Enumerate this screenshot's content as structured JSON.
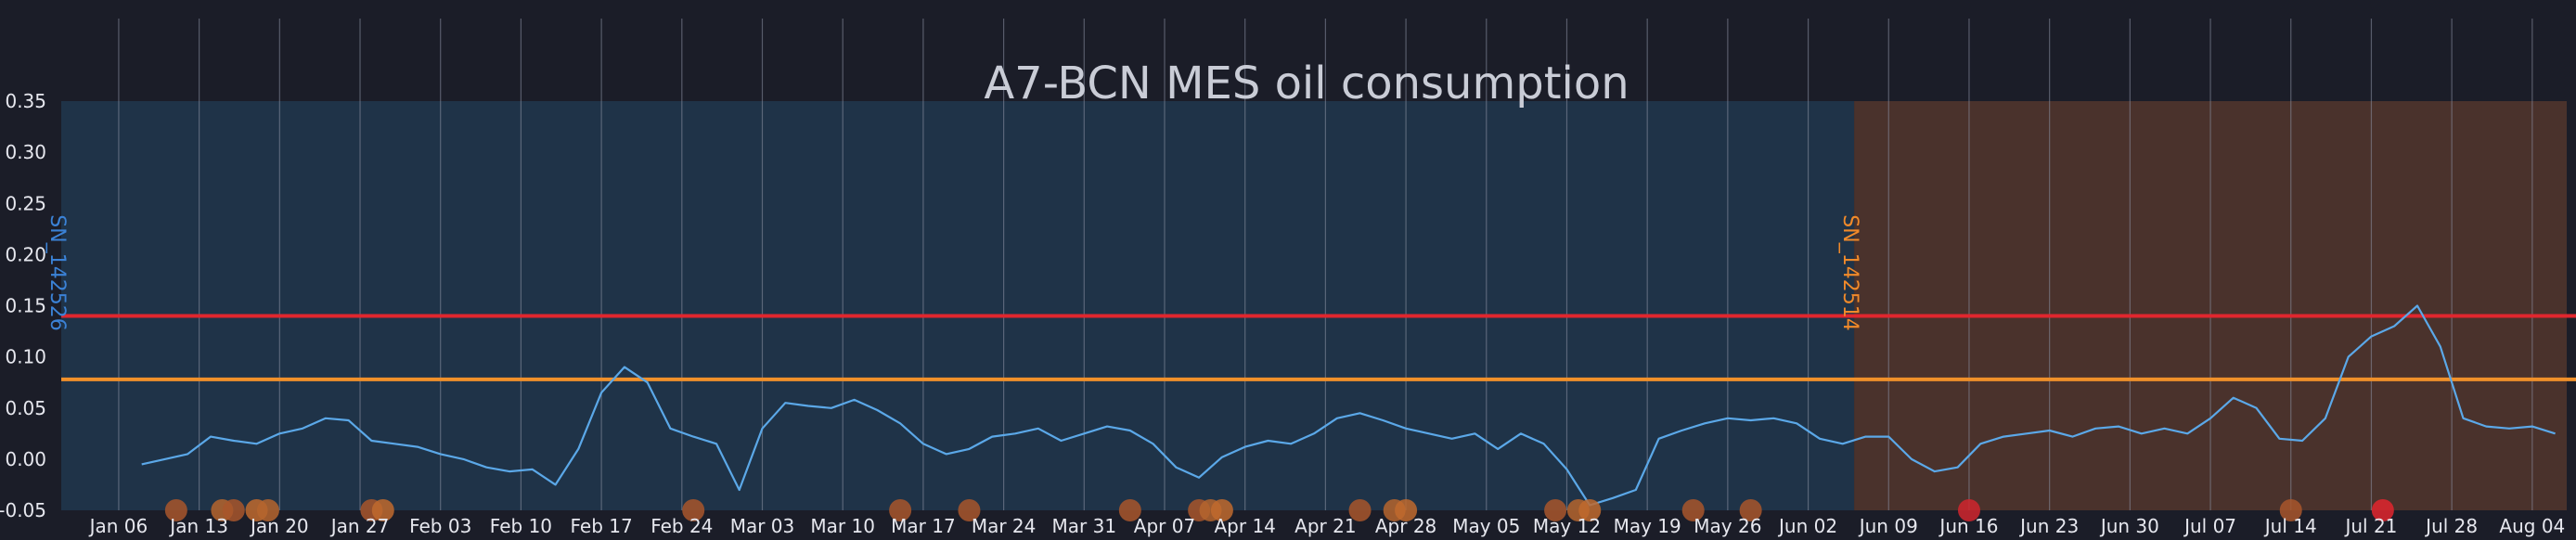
{
  "chart_data": {
    "type": "line",
    "title": "A7-BCN MES oil consumption",
    "xlabel": "",
    "ylabel": "",
    "x_range": [
      "2019-01-01",
      "2019-08-07"
    ],
    "ylim": [
      -0.05,
      0.35
    ],
    "y_ticks": [
      {
        "value": 0.35,
        "label": "0.35"
      },
      {
        "value": 0.3,
        "label": "0.30"
      },
      {
        "value": 0.25,
        "label": "0.25"
      },
      {
        "value": 0.2,
        "label": "0.20"
      },
      {
        "value": 0.15,
        "label": "0.15"
      },
      {
        "value": 0.1,
        "label": "0.10"
      },
      {
        "value": 0.05,
        "label": "0.05"
      },
      {
        "value": 0.0,
        "label": "0.00"
      },
      {
        "value": -0.05,
        "label": "-0.05"
      }
    ],
    "x_ticks": [
      {
        "date": "2019-01-06",
        "label": "Jan 06"
      },
      {
        "date": "2019-01-13",
        "label": "Jan 13"
      },
      {
        "date": "2019-01-20",
        "label": "Jan 20"
      },
      {
        "date": "2019-01-27",
        "label": "Jan 27"
      },
      {
        "date": "2019-02-03",
        "label": "Feb 03"
      },
      {
        "date": "2019-02-10",
        "label": "Feb 10"
      },
      {
        "date": "2019-02-17",
        "label": "Feb 17"
      },
      {
        "date": "2019-02-24",
        "label": "Feb 24"
      },
      {
        "date": "2019-03-03",
        "label": "Mar 03"
      },
      {
        "date": "2019-03-10",
        "label": "Mar 10"
      },
      {
        "date": "2019-03-17",
        "label": "Mar 17"
      },
      {
        "date": "2019-03-24",
        "label": "Mar 24"
      },
      {
        "date": "2019-03-31",
        "label": "Mar 31"
      },
      {
        "date": "2019-04-07",
        "label": "Apr 07"
      },
      {
        "date": "2019-04-14",
        "label": "Apr 14"
      },
      {
        "date": "2019-04-21",
        "label": "Apr 21"
      },
      {
        "date": "2019-04-28",
        "label": "Apr 28"
      },
      {
        "date": "2019-05-05",
        "label": "May 05"
      },
      {
        "date": "2019-05-12",
        "label": "May 12"
      },
      {
        "date": "2019-05-19",
        "label": "May 19"
      },
      {
        "date": "2019-05-26",
        "label": "May 26"
      },
      {
        "date": "2019-06-02",
        "label": "Jun 02"
      },
      {
        "date": "2019-06-09",
        "label": "Jun 09"
      },
      {
        "date": "2019-06-16",
        "label": "Jun 16"
      },
      {
        "date": "2019-06-23",
        "label": "Jun 23"
      },
      {
        "date": "2019-06-30",
        "label": "Jun 30"
      },
      {
        "date": "2019-07-07",
        "label": "Jul 07"
      },
      {
        "date": "2019-07-14",
        "label": "Jul 14"
      },
      {
        "date": "2019-07-21",
        "label": "Jul 21"
      },
      {
        "date": "2019-07-28",
        "label": "Jul 28"
      },
      {
        "date": "2019-08-04",
        "label": "Aug 04"
      }
    ],
    "periods": [
      {
        "label": "SN_142526",
        "start": "2019-01-01",
        "end": "2019-06-06",
        "color": "#1f3348",
        "label_color": "#3b82d6"
      },
      {
        "label": "SN_142514",
        "start": "2019-06-06",
        "end": "2019-08-07",
        "color": "#4a322c",
        "label_color": "#f08a2a"
      }
    ],
    "thresholds": [
      {
        "value": 0.14,
        "color": "#e0262e"
      },
      {
        "value": 0.078,
        "color": "#f0902a"
      }
    ],
    "series": [
      {
        "color": "#5ba8e8",
        "x": [
          "2019-01-08",
          "2019-01-10",
          "2019-01-12",
          "2019-01-14",
          "2019-01-16",
          "2019-01-18",
          "2019-01-20",
          "2019-01-22",
          "2019-01-24",
          "2019-01-26",
          "2019-01-28",
          "2019-01-30",
          "2019-02-01",
          "2019-02-03",
          "2019-02-05",
          "2019-02-07",
          "2019-02-09",
          "2019-02-11",
          "2019-02-13",
          "2019-02-15",
          "2019-02-17",
          "2019-02-19",
          "2019-02-21",
          "2019-02-23",
          "2019-02-25",
          "2019-02-27",
          "2019-03-01",
          "2019-03-03",
          "2019-03-05",
          "2019-03-07",
          "2019-03-09",
          "2019-03-11",
          "2019-03-13",
          "2019-03-15",
          "2019-03-17",
          "2019-03-19",
          "2019-03-21",
          "2019-03-23",
          "2019-03-25",
          "2019-03-27",
          "2019-03-29",
          "2019-03-31",
          "2019-04-02",
          "2019-04-04",
          "2019-04-06",
          "2019-04-08",
          "2019-04-10",
          "2019-04-12",
          "2019-04-14",
          "2019-04-16",
          "2019-04-18",
          "2019-04-20",
          "2019-04-22",
          "2019-04-24",
          "2019-04-26",
          "2019-04-28",
          "2019-04-30",
          "2019-05-02",
          "2019-05-04",
          "2019-05-06",
          "2019-05-08",
          "2019-05-10",
          "2019-05-12",
          "2019-05-14",
          "2019-05-16",
          "2019-05-18",
          "2019-05-20",
          "2019-05-22",
          "2019-05-24",
          "2019-05-26",
          "2019-05-28",
          "2019-05-30",
          "2019-06-01",
          "2019-06-03",
          "2019-06-05",
          "2019-06-07",
          "2019-06-09",
          "2019-06-11",
          "2019-06-13",
          "2019-06-15",
          "2019-06-17",
          "2019-06-19",
          "2019-06-21",
          "2019-06-23",
          "2019-06-25",
          "2019-06-27",
          "2019-06-29",
          "2019-07-01",
          "2019-07-03",
          "2019-07-05",
          "2019-07-07",
          "2019-07-09",
          "2019-07-11",
          "2019-07-13",
          "2019-07-15",
          "2019-07-17",
          "2019-07-19",
          "2019-07-21",
          "2019-07-23",
          "2019-07-25",
          "2019-07-27",
          "2019-07-29",
          "2019-07-31",
          "2019-08-02",
          "2019-08-04",
          "2019-08-06"
        ],
        "values": [
          -0.005,
          0.0,
          0.005,
          0.022,
          0.018,
          0.015,
          0.025,
          0.03,
          0.04,
          0.038,
          0.018,
          0.015,
          0.012,
          0.005,
          0.0,
          -0.008,
          -0.012,
          -0.01,
          -0.025,
          0.01,
          0.065,
          0.09,
          0.075,
          0.03,
          0.022,
          0.015,
          -0.03,
          0.03,
          0.055,
          0.052,
          0.05,
          0.058,
          0.048,
          0.035,
          0.015,
          0.005,
          0.01,
          0.022,
          0.025,
          0.03,
          0.018,
          0.025,
          0.032,
          0.028,
          0.015,
          -0.008,
          -0.018,
          0.002,
          0.012,
          0.018,
          0.015,
          0.025,
          0.04,
          0.045,
          0.038,
          0.03,
          0.025,
          0.02,
          0.025,
          0.01,
          0.025,
          0.015,
          -0.01,
          -0.045,
          -0.038,
          -0.03,
          0.02,
          0.028,
          0.035,
          0.04,
          0.038,
          0.04,
          0.035,
          0.02,
          0.015,
          0.022,
          0.022,
          0.0,
          -0.012,
          -0.008,
          0.015,
          0.022,
          0.025,
          0.028,
          0.022,
          0.03,
          0.032,
          0.025,
          0.03,
          0.025,
          0.04,
          0.06,
          0.05,
          0.02,
          0.018,
          0.04,
          0.1,
          0.12,
          0.13,
          0.15,
          0.11,
          0.04,
          0.032,
          0.03,
          0.032,
          0.025
        ]
      }
    ],
    "event_markers": [
      {
        "x": "2019-01-11",
        "color": "#a8562c"
      },
      {
        "x": "2019-01-15",
        "color": "#b5652e"
      },
      {
        "x": "2019-01-16",
        "color": "#a8562c"
      },
      {
        "x": "2019-01-18",
        "color": "#c06a2e"
      },
      {
        "x": "2019-01-19",
        "color": "#b5652e"
      },
      {
        "x": "2019-01-28",
        "color": "#a8562c"
      },
      {
        "x": "2019-01-29",
        "color": "#c06a2e"
      },
      {
        "x": "2019-02-25",
        "color": "#a8562c"
      },
      {
        "x": "2019-03-15",
        "color": "#a8562c"
      },
      {
        "x": "2019-03-21",
        "color": "#a8562c"
      },
      {
        "x": "2019-04-04",
        "color": "#a8562c"
      },
      {
        "x": "2019-04-10",
        "color": "#a8562c"
      },
      {
        "x": "2019-04-11",
        "color": "#b5652e"
      },
      {
        "x": "2019-04-12",
        "color": "#c06a2e"
      },
      {
        "x": "2019-04-24",
        "color": "#a8562c"
      },
      {
        "x": "2019-04-27",
        "color": "#b5652e"
      },
      {
        "x": "2019-04-28",
        "color": "#c06a2e"
      },
      {
        "x": "2019-05-11",
        "color": "#a8562c"
      },
      {
        "x": "2019-05-13",
        "color": "#b5652e"
      },
      {
        "x": "2019-05-14",
        "color": "#c06a2e"
      },
      {
        "x": "2019-05-23",
        "color": "#a8562c"
      },
      {
        "x": "2019-05-28",
        "color": "#a8562c"
      },
      {
        "x": "2019-06-16",
        "color": "#d0262e"
      },
      {
        "x": "2019-07-14",
        "color": "#a8562c"
      },
      {
        "x": "2019-07-22",
        "color": "#e0262e"
      }
    ]
  }
}
